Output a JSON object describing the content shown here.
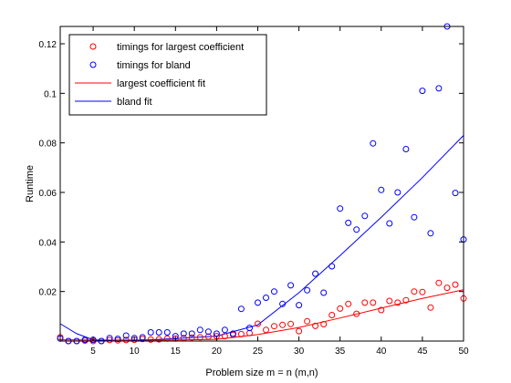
{
  "chart_data": {
    "type": "scatter",
    "title": "",
    "xlabel": "Problem size m = n (m,n)",
    "ylabel": "Runtime",
    "xlim": [
      1,
      50
    ],
    "ylim": [
      0,
      0.127
    ],
    "x_ticks": [
      5,
      10,
      15,
      20,
      25,
      30,
      35,
      40,
      45,
      50
    ],
    "x_tick_labels": [
      "5",
      "10",
      "15",
      "20",
      "25",
      "30",
      "35",
      "40",
      "45",
      "50"
    ],
    "y_ticks": [
      0.02,
      0.04,
      0.06,
      0.08,
      0.1,
      0.12
    ],
    "y_tick_labels": [
      "0.02",
      "0.04",
      "0.06",
      "0.08",
      "0.1",
      "0.12"
    ],
    "grid": false,
    "legend_position": "top-left",
    "legend": [
      {
        "label": "timings for largest coefficient",
        "marker": "circle",
        "color": "#ff0000"
      },
      {
        "label": "timings for bland",
        "marker": "circle",
        "color": "#0000ff"
      },
      {
        "label": "largest coefficient fit",
        "marker": "line",
        "color": "#ff0000"
      },
      {
        "label": "bland fit",
        "marker": "line",
        "color": "#0000ff"
      }
    ],
    "series": [
      {
        "name": "timings for largest coefficient",
        "kind": "scatter",
        "color": "#ff0000",
        "x": [
          1,
          2,
          3,
          4,
          5,
          6,
          7,
          8,
          9,
          10,
          11,
          12,
          13,
          14,
          15,
          16,
          17,
          18,
          19,
          20,
          21,
          22,
          23,
          24,
          25,
          26,
          27,
          28,
          29,
          30,
          31,
          32,
          33,
          34,
          35,
          36,
          37,
          38,
          39,
          40,
          41,
          42,
          43,
          44,
          45,
          46,
          47,
          48,
          49,
          50
        ],
        "y": [
          0.0015,
          0,
          0,
          0.0002,
          0,
          0,
          0.0004,
          0.0003,
          0.0004,
          0.0005,
          0.0008,
          0.0006,
          0.0007,
          0.001,
          0.001,
          0.0012,
          0.0014,
          0.0015,
          0.0018,
          0.002,
          0.002,
          0.0025,
          0.0028,
          0.0032,
          0.007,
          0.0045,
          0.006,
          0.0065,
          0.0069,
          0.004,
          0.008,
          0.0061,
          0.0068,
          0.0105,
          0.0131,
          0.015,
          0.011,
          0.0155,
          0.0155,
          0.0125,
          0.0162,
          0.0155,
          0.0165,
          0.02,
          0.0198,
          0.0135,
          0.0235,
          0.0215,
          0.0228,
          0.0172
        ]
      },
      {
        "name": "timings for bland",
        "kind": "scatter",
        "color": "#0000ff",
        "x": [
          1,
          2,
          3,
          4,
          5,
          6,
          7,
          8,
          9,
          10,
          11,
          12,
          13,
          14,
          15,
          16,
          17,
          18,
          19,
          20,
          21,
          22,
          23,
          24,
          25,
          26,
          27,
          28,
          29,
          30,
          31,
          32,
          33,
          34,
          35,
          36,
          37,
          38,
          39,
          40,
          41,
          42,
          43,
          44,
          45,
          46,
          47,
          48,
          49,
          50
        ],
        "y": [
          0.001,
          0,
          0,
          0.0005,
          0.0005,
          0,
          0.0012,
          0.0009,
          0.0022,
          0.0012,
          0.0015,
          0.0035,
          0.0035,
          0.0035,
          0.002,
          0.003,
          0.003,
          0.0045,
          0.0038,
          0.003,
          0.0045,
          0.003,
          0.013,
          0.0053,
          0.0155,
          0.0175,
          0.02,
          0.015,
          0.0225,
          0.0145,
          0.0205,
          0.0272,
          0.0195,
          0.0302,
          0.0535,
          0.0477,
          0.045,
          0.0505,
          0.0798,
          0.061,
          0.0475,
          0.06,
          0.0775,
          0.05,
          0.101,
          0.0435,
          0.102,
          0.127,
          0.0598,
          0.041
        ]
      },
      {
        "name": "largest coefficient fit",
        "kind": "line",
        "color": "#ff0000",
        "x": [
          1,
          5,
          10,
          15,
          20,
          25,
          30,
          35,
          40,
          45,
          50
        ],
        "y": [
          0.0005,
          0.0004,
          0.0004,
          0.0004,
          0.0007,
          0.0026,
          0.0055,
          0.0093,
          0.0133,
          0.0172,
          0.0207
        ]
      },
      {
        "name": "bland fit",
        "kind": "line",
        "color": "#0000ff",
        "x": [
          1,
          3,
          5,
          8,
          10,
          15,
          20,
          25,
          30,
          35,
          40,
          45,
          50
        ],
        "y": [
          0.007,
          0.003,
          0.0005,
          0,
          0.0002,
          0.001,
          0.002,
          0.0065,
          0.0195,
          0.0345,
          0.05,
          0.066,
          0.083
        ]
      }
    ]
  }
}
